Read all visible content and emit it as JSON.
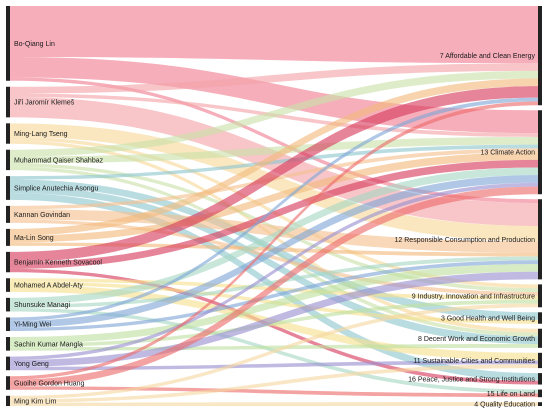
{
  "diagram": {
    "type": "sankey",
    "sources": [
      {
        "label": "Bo-Qiang Lin",
        "color": "#f07c92"
      },
      {
        "label": "Jiří Jaromír Klemeš",
        "color": "#f4a3a8"
      },
      {
        "label": "Ming-Lang Tseng",
        "color": "#f7d99a"
      },
      {
        "label": "Muhammad Qaiser Shahbaz",
        "color": "#c9e0a8"
      },
      {
        "label": "Simplice Anutechia Asongu",
        "color": "#8ec7cf"
      },
      {
        "label": "Kannan Govindan",
        "color": "#f5c08f"
      },
      {
        "label": "Ma-Lin Song",
        "color": "#f2b97d"
      },
      {
        "label": "Benjamin Kenneth Sovacool",
        "color": "#d63a5c"
      },
      {
        "label": "Mohamed A Abdel-Aty",
        "color": "#f6e08c"
      },
      {
        "label": "Shunsuke Managi",
        "color": "#a7d6c4"
      },
      {
        "label": "Yi-Ming Wei",
        "color": "#7fa6d6"
      },
      {
        "label": "Sachin Kumar Mangla",
        "color": "#bfe0a0"
      },
      {
        "label": "Yong Geng",
        "color": "#9a8fd0"
      },
      {
        "label": "Guoihe Gordon Huang",
        "color": "#ee6b6b"
      },
      {
        "label": "Ming Kim Lim",
        "color": "#f6d6a0"
      }
    ],
    "targets": [
      {
        "label": "7 Affordable and Clean Energy"
      },
      {
        "label": "13 Climate Action"
      },
      {
        "label": "12 Responsible Consumption and Production"
      },
      {
        "label": "9 Industry, Innovation and Infrastructure"
      },
      {
        "label": "3 Good Health and Well Being"
      },
      {
        "label": "8 Decent Work and Economic Growth"
      },
      {
        "label": "11 Sustainable Cities and Communities"
      },
      {
        "label": "16 Peace, Justice and Strong Institutions"
      },
      {
        "label": "15 Life on Land"
      },
      {
        "label": "4 Quality Education"
      }
    ],
    "links": [
      {
        "source": 0,
        "target": 0,
        "value": 15
      },
      {
        "source": 0,
        "target": 1,
        "value": 6
      },
      {
        "source": 0,
        "target": 2,
        "value": 1
      },
      {
        "source": 1,
        "target": 2,
        "value": 6
      },
      {
        "source": 1,
        "target": 0,
        "value": 2
      },
      {
        "source": 1,
        "target": 1,
        "value": 1
      },
      {
        "source": 2,
        "target": 2,
        "value": 4
      },
      {
        "source": 2,
        "target": 5,
        "value": 1
      },
      {
        "source": 2,
        "target": 3,
        "value": 1
      },
      {
        "source": 3,
        "target": 0,
        "value": 2
      },
      {
        "source": 3,
        "target": 1,
        "value": 2
      },
      {
        "source": 3,
        "target": 5,
        "value": 1
      },
      {
        "source": 3,
        "target": 3,
        "value": 1
      },
      {
        "source": 4,
        "target": 4,
        "value": 2
      },
      {
        "source": 4,
        "target": 5,
        "value": 2
      },
      {
        "source": 4,
        "target": 7,
        "value": 2
      },
      {
        "source": 4,
        "target": 1,
        "value": 1
      },
      {
        "source": 5,
        "target": 2,
        "value": 3
      },
      {
        "source": 5,
        "target": 1,
        "value": 1
      },
      {
        "source": 5,
        "target": 3,
        "value": 1
      },
      {
        "source": 6,
        "target": 1,
        "value": 2
      },
      {
        "source": 6,
        "target": 0,
        "value": 2
      },
      {
        "source": 6,
        "target": 2,
        "value": 1
      },
      {
        "source": 7,
        "target": 0,
        "value": 3
      },
      {
        "source": 7,
        "target": 1,
        "value": 2
      },
      {
        "source": 7,
        "target": 7,
        "value": 1
      },
      {
        "source": 8,
        "target": 6,
        "value": 2
      },
      {
        "source": 8,
        "target": 3,
        "value": 1
      },
      {
        "source": 8,
        "target": 4,
        "value": 1
      },
      {
        "source": 9,
        "target": 1,
        "value": 2
      },
      {
        "source": 9,
        "target": 2,
        "value": 1
      },
      {
        "source": 9,
        "target": 8,
        "value": 1
      },
      {
        "source": 10,
        "target": 1,
        "value": 2
      },
      {
        "source": 10,
        "target": 0,
        "value": 1
      },
      {
        "source": 10,
        "target": 2,
        "value": 1
      },
      {
        "source": 11,
        "target": 2,
        "value": 2
      },
      {
        "source": 11,
        "target": 5,
        "value": 1
      },
      {
        "source": 11,
        "target": 3,
        "value": 1
      },
      {
        "source": 12,
        "target": 2,
        "value": 2
      },
      {
        "source": 12,
        "target": 1,
        "value": 1
      },
      {
        "source": 12,
        "target": 6,
        "value": 1
      },
      {
        "source": 13,
        "target": 1,
        "value": 2
      },
      {
        "source": 13,
        "target": 8,
        "value": 1
      },
      {
        "source": 13,
        "target": 0,
        "value": 1
      },
      {
        "source": 14,
        "target": 9,
        "value": 1
      },
      {
        "source": 14,
        "target": 6,
        "value": 1
      },
      {
        "source": 14,
        "target": 3,
        "value": 1
      }
    ]
  }
}
